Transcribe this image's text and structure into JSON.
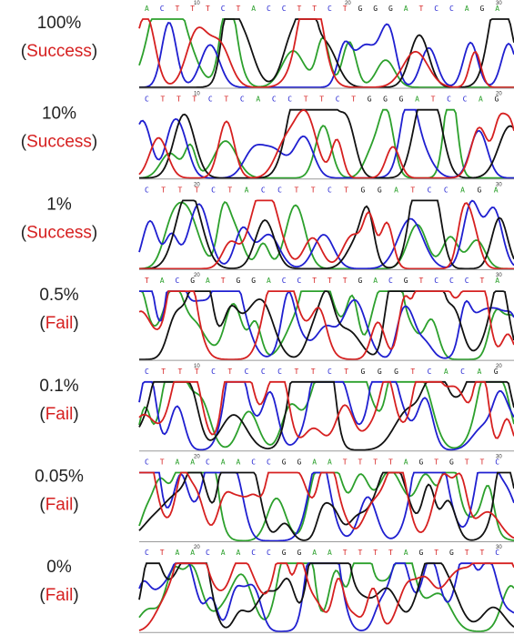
{
  "brackets": [
    "(",
    ")"
  ],
  "base_colors": {
    "A": "#2ca02c",
    "C": "#1f1fd0",
    "G": "#111111",
    "T": "#d62020"
  },
  "panels": [
    {
      "label": "100%",
      "status": "Success",
      "status_color": "#d62020",
      "bases": "ACTTTCTACCTTCTGGGATCCAGA",
      "positions": [
        10,
        20,
        30
      ]
    },
    {
      "label": "10%",
      "status": "Success",
      "status_color": "#d62020",
      "bases": "CTTTCTCACCTTCTGGGATCCAG",
      "positions": [
        10,
        20
      ]
    },
    {
      "label": "1%",
      "status": "Success",
      "status_color": "#d62020",
      "bases": "CTTTCTACCTTCTGGATCCAGA",
      "positions": [
        20,
        30
      ]
    },
    {
      "label": "0.5%",
      "status": "Fail",
      "status_color": "#d62020",
      "bases": "TACGATGGACCTTTGACGTCCCTA",
      "positions": [
        20,
        30
      ]
    },
    {
      "label": "0.1%",
      "status": "Fail",
      "status_color": "#d62020",
      "bases": "CTTTCTCCCTTCTGGGTCACAG",
      "positions": [
        10,
        20
      ]
    },
    {
      "label": "0.05%",
      "status": "Fail",
      "status_color": "#d62020",
      "bases": "CTAACAACCGGAATTTTAGTGTTC",
      "positions": [
        20,
        30
      ]
    },
    {
      "label": "0%",
      "status": "Fail",
      "status_color": "#d62020",
      "bases": "CTAACAACCGGAATTTTAGTGTTC",
      "positions": [
        20,
        30
      ]
    }
  ]
}
